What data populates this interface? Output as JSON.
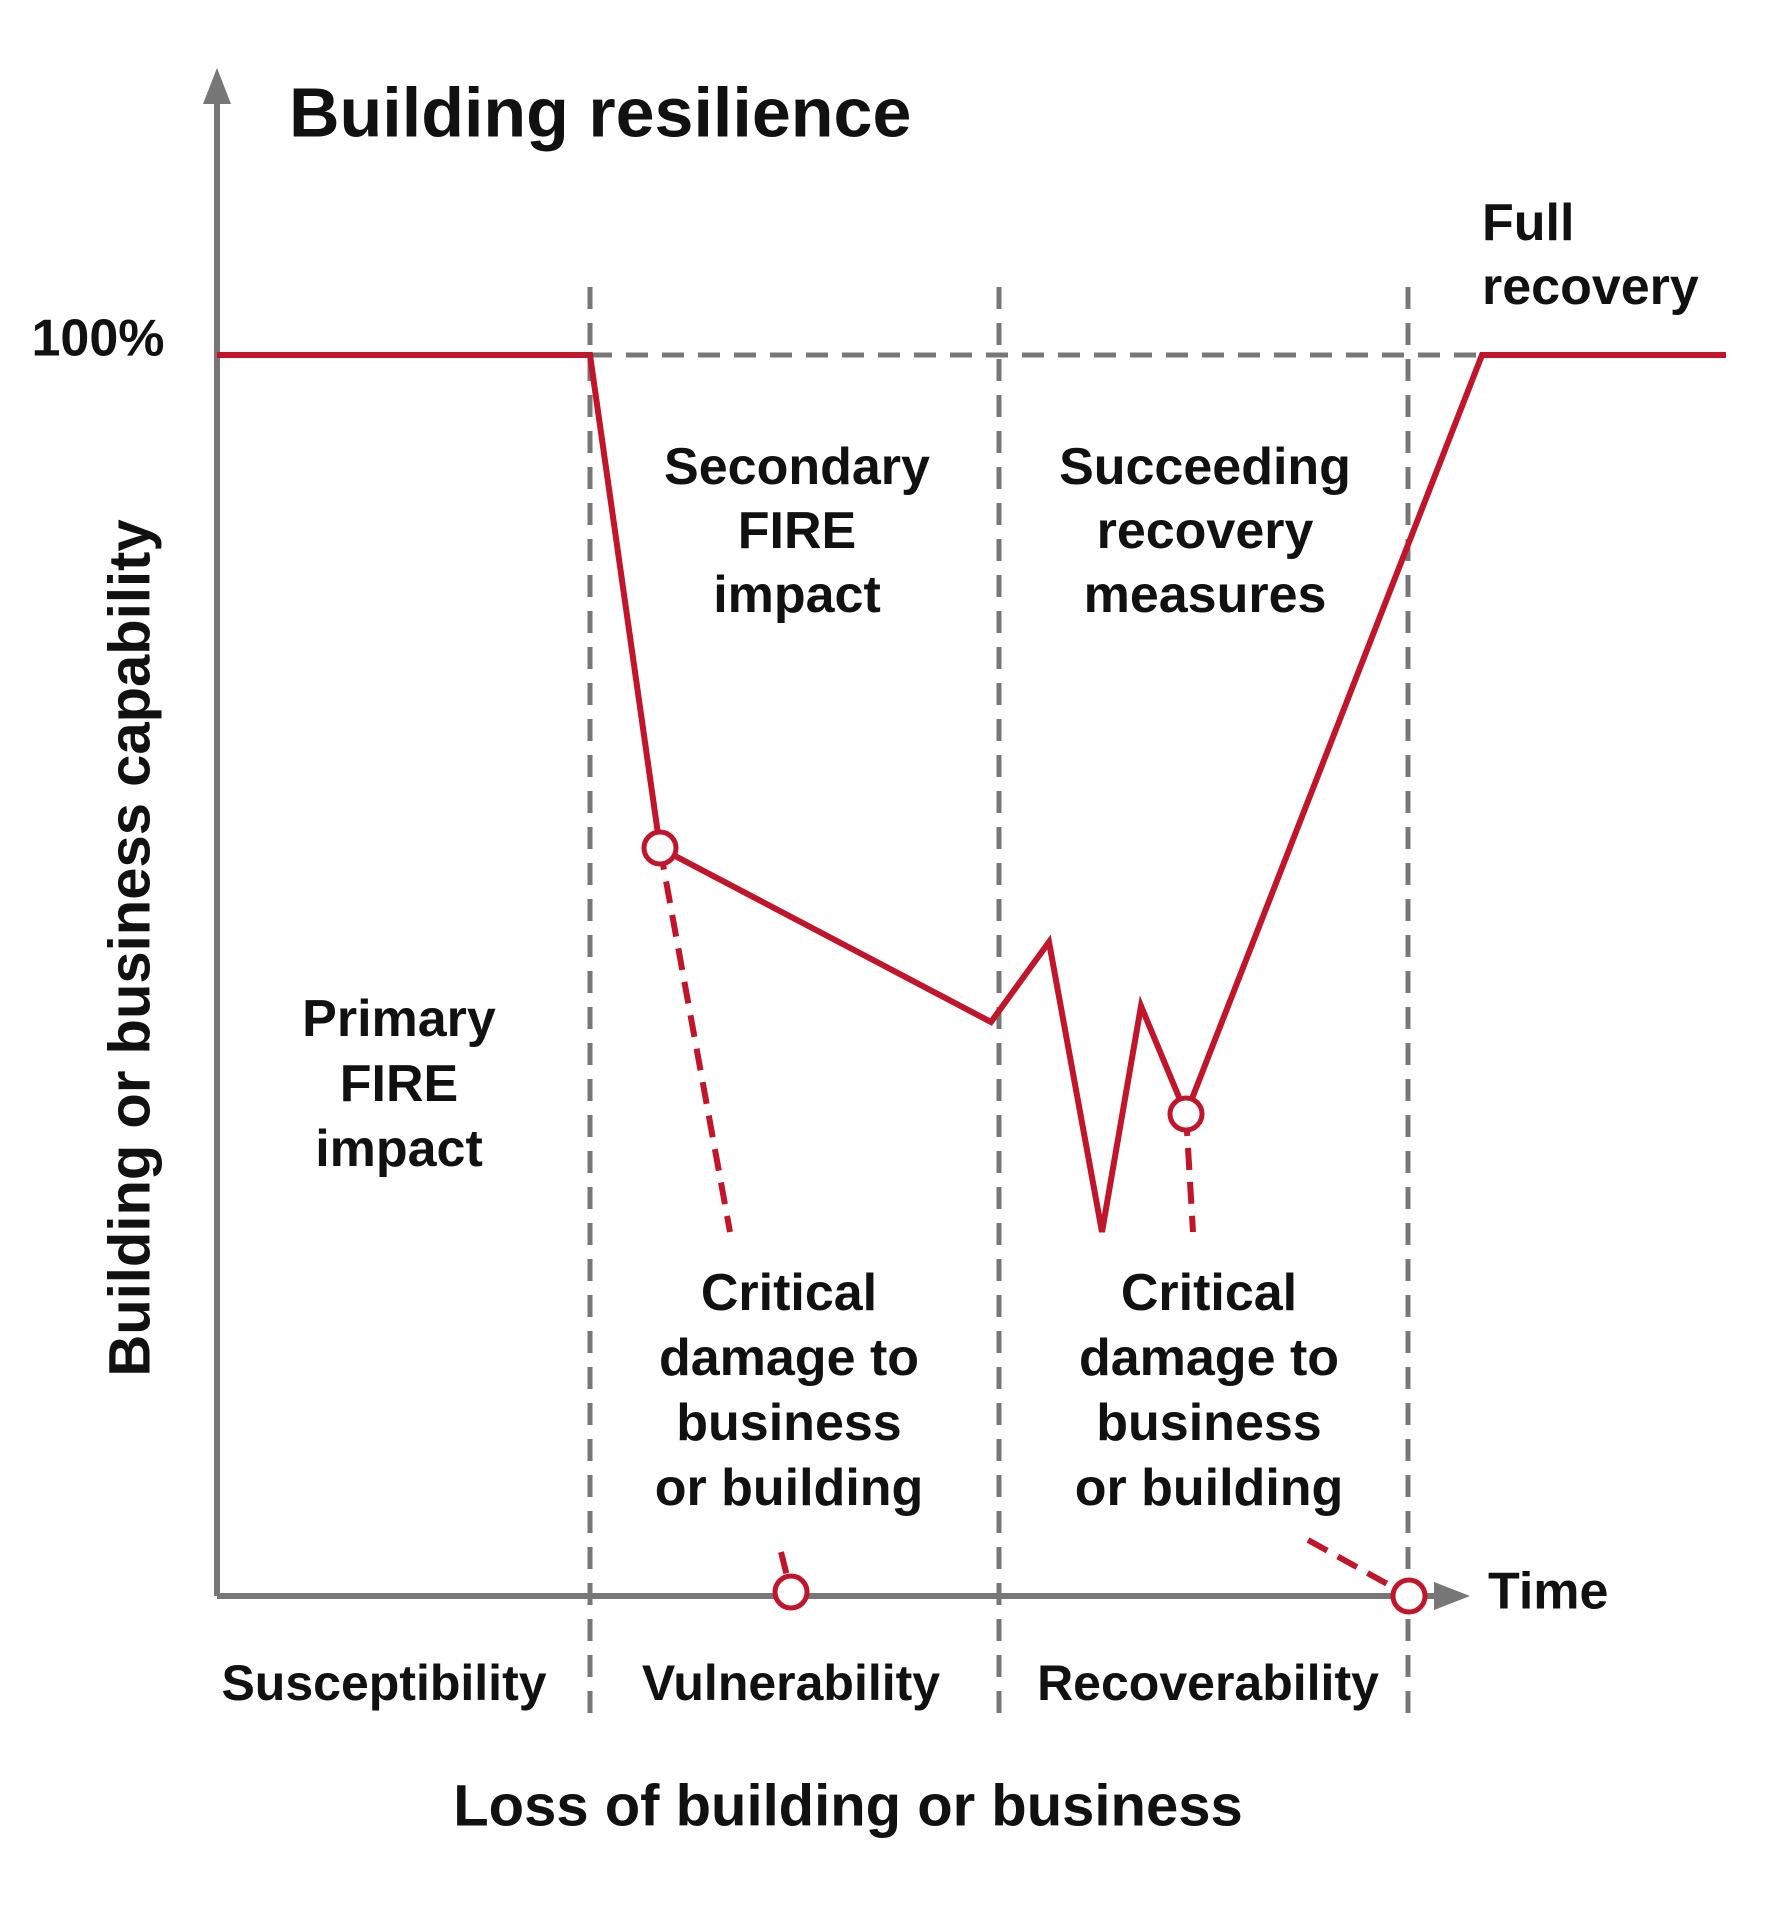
{
  "title": "Building resilience",
  "y_axis_label": "Building or business capability",
  "x_axis_label": "Loss of building or business",
  "level_label": "100%",
  "time_label": "Time",
  "annotations": {
    "full_recovery": [
      "Full",
      "recovery"
    ],
    "secondary_impact": [
      "Secondary",
      "FIRE",
      "impact"
    ],
    "succeeding_recovery": [
      "Succeeding",
      "recovery",
      "measures"
    ],
    "primary_impact": [
      "Primary",
      "FIRE",
      "impact"
    ],
    "critical_damage_1": [
      "Critical",
      "damage to",
      "business",
      "or building"
    ],
    "critical_damage_2": [
      "Critical",
      "damage to",
      "business",
      "or building"
    ]
  },
  "phases": [
    "Susceptibility",
    "Vulnerability",
    "Recoverability"
  ]
}
